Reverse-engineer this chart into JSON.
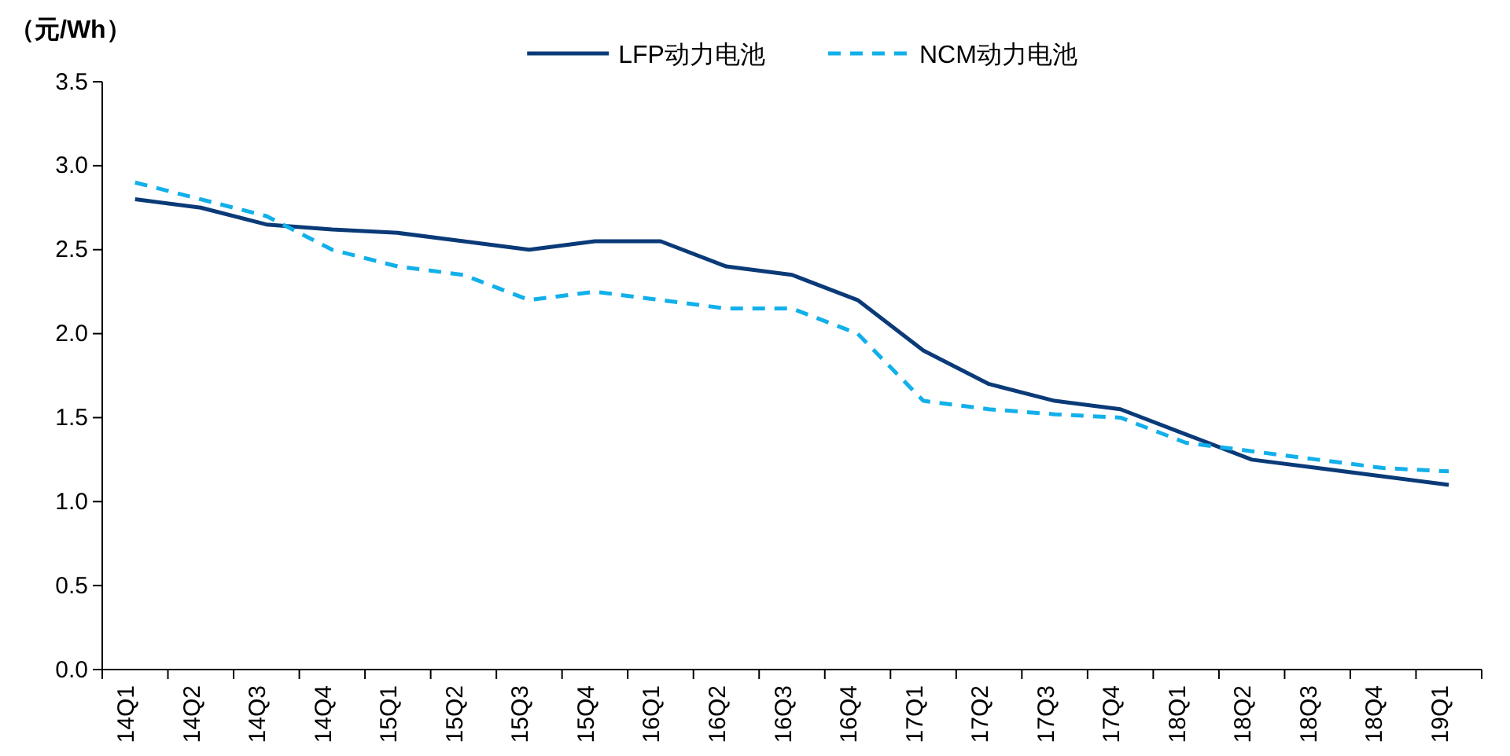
{
  "chart_data": {
    "type": "line",
    "ylabel": "（元/Wh）",
    "categories": [
      "14Q1",
      "14Q2",
      "14Q3",
      "14Q4",
      "15Q1",
      "15Q2",
      "15Q3",
      "15Q4",
      "16Q1",
      "16Q2",
      "16Q3",
      "16Q4",
      "17Q1",
      "17Q2",
      "17Q3",
      "17Q4",
      "18Q1",
      "18Q2",
      "18Q3",
      "18Q4",
      "19Q1"
    ],
    "series": [
      {
        "name": "LFP动力电池",
        "color": "#0b3a78",
        "line_style": "solid",
        "values": [
          2.8,
          2.75,
          2.65,
          2.62,
          2.6,
          2.55,
          2.5,
          2.55,
          2.55,
          2.4,
          2.35,
          2.2,
          1.9,
          1.7,
          1.6,
          1.55,
          1.4,
          1.25,
          1.2,
          1.15,
          1.1
        ]
      },
      {
        "name": "NCM动力电池",
        "color": "#12b0ea",
        "line_style": "dashed",
        "values": [
          2.9,
          2.8,
          2.7,
          2.5,
          2.4,
          2.35,
          2.2,
          2.25,
          2.2,
          2.15,
          2.15,
          2.0,
          1.6,
          1.55,
          1.52,
          1.5,
          1.35,
          1.3,
          1.25,
          1.2,
          1.18
        ]
      }
    ],
    "ylim": [
      0,
      3.5
    ],
    "yticks": [
      {
        "value": 0,
        "label": "0.0"
      },
      {
        "value": 0.5,
        "label": "0.5"
      },
      {
        "value": 1,
        "label": "1.0"
      },
      {
        "value": 1.5,
        "label": "1.5"
      },
      {
        "value": 2,
        "label": "2.0"
      },
      {
        "value": 2.5,
        "label": "2.5"
      },
      {
        "value": 3,
        "label": "3.0"
      },
      {
        "value": 3.5,
        "label": "3.5"
      }
    ],
    "grid": false,
    "legend": "top",
    "marker": "none"
  }
}
